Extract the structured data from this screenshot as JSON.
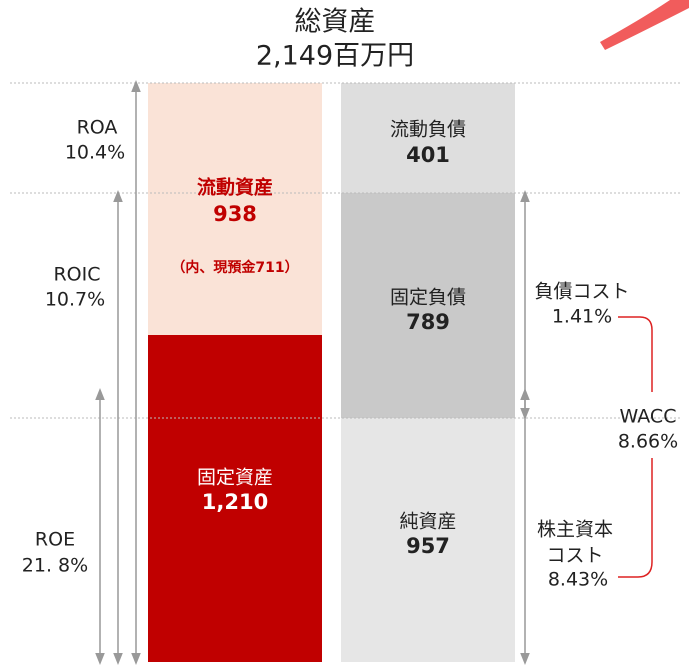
{
  "header": {
    "title": "総資産",
    "total": "2,149百万円"
  },
  "assets": [
    {
      "label": "流動資産",
      "value": "938",
      "note": "（内、現預金711）"
    },
    {
      "label": "固定資産",
      "value": "1,210"
    }
  ],
  "liabilities": [
    {
      "label": "流動負債",
      "value": "401"
    },
    {
      "label": "固定負債",
      "value": "789"
    },
    {
      "label": "純資産",
      "value": "957"
    }
  ],
  "returns": [
    {
      "label": "ROA",
      "value": "10.4%"
    },
    {
      "label": "ROIC",
      "value": "10.7%"
    },
    {
      "label": "ROE",
      "value": "21. 8%"
    }
  ],
  "costs": [
    {
      "label_lines": [
        "負債コスト"
      ],
      "value": "1.41%"
    },
    {
      "label_lines": [
        "WACC"
      ],
      "value": "8.66%"
    },
    {
      "label_lines": [
        "株主資本",
        "コスト"
      ],
      "value": "8.43%"
    }
  ]
}
